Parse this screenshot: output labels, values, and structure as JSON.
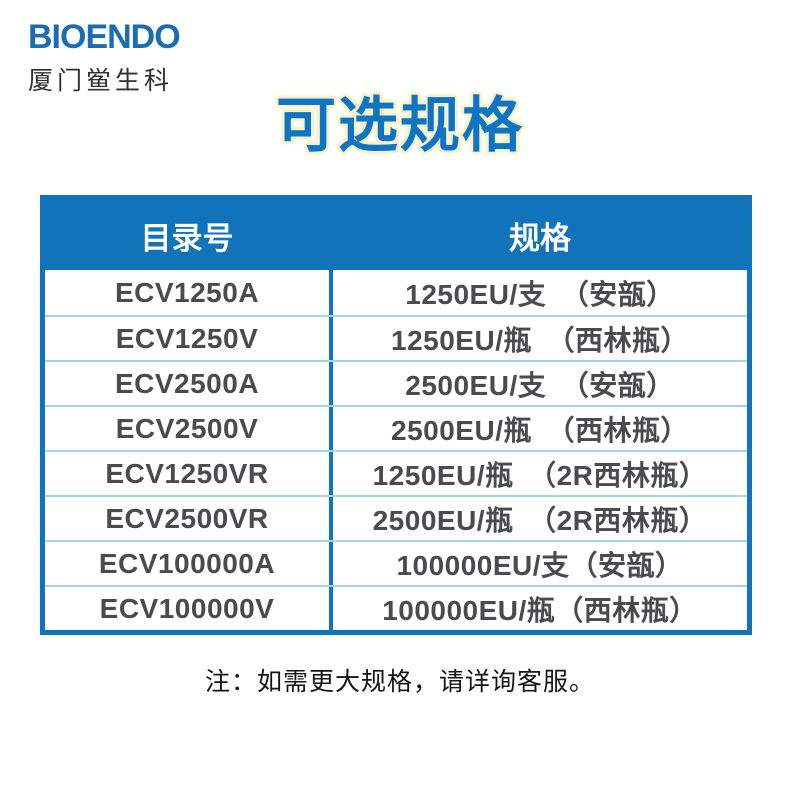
{
  "logo": {
    "brand": "BIOENDO",
    "subtitle": "厦门鲎生科"
  },
  "title": "可选规格",
  "table": {
    "headers": {
      "catalog": "目录号",
      "spec": "规格"
    },
    "rows": [
      {
        "catalog": "ECV1250A",
        "spec": "1250EU/支　（安瓿）"
      },
      {
        "catalog": "ECV1250V",
        "spec": "1250EU/瓶　（西林瓶）"
      },
      {
        "catalog": "ECV2500A",
        "spec": "2500EU/支　（安瓿）"
      },
      {
        "catalog": "ECV2500V",
        "spec": "2500EU/瓶　（西林瓶）"
      },
      {
        "catalog": "ECV1250VR",
        "spec": "1250EU/瓶　（2R西林瓶）"
      },
      {
        "catalog": "ECV2500VR",
        "spec": "2500EU/瓶　（2R西林瓶）"
      },
      {
        "catalog": "ECV100000A",
        "spec": "100000EU/支（安瓿）"
      },
      {
        "catalog": "ECV100000V",
        "spec": "100000EU/瓶（西林瓶）"
      }
    ]
  },
  "note": "注：如需更大规格，请详询客服。",
  "colors": {
    "brand_blue": "#1b6db3",
    "header_blue": "#1173b9",
    "title_blue": "#0e74c4",
    "title_halo": "#f6f2cc",
    "row_divider_blue": "#a5d4ef",
    "cell_text_gray": "#4a4b4d"
  }
}
